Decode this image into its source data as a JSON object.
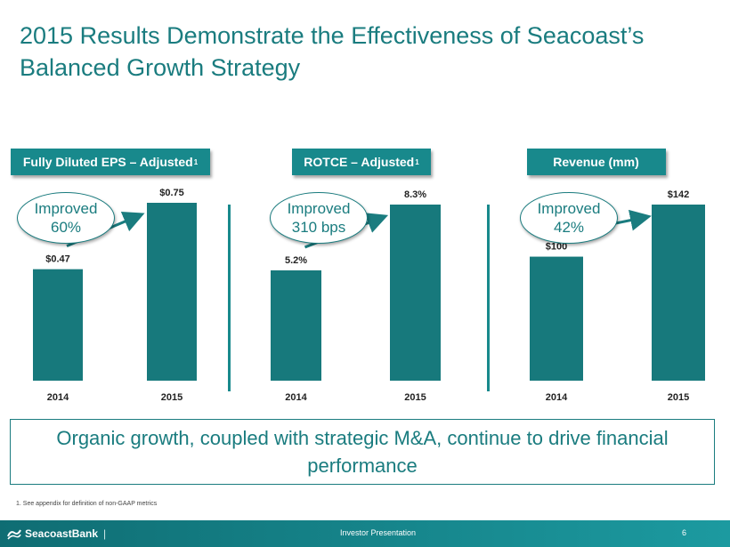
{
  "title": "2015 Results Demonstrate the Effectiveness of Seacoast’s Balanced Growth Strategy",
  "charts": [
    {
      "header": "Fully Diluted EPS – Adjusted",
      "header_sup": "1",
      "callout": {
        "line1": "Improved",
        "line2": "60%"
      }
    },
    {
      "header": "ROTCE – Adjusted",
      "header_sup": "1",
      "callout": {
        "line1": "Improved",
        "line2": "310 bps"
      }
    },
    {
      "header": "Revenue (mm)",
      "header_sup": "",
      "callout": {
        "line1": "Improved",
        "line2": "42%"
      }
    }
  ],
  "chart_data": [
    {
      "type": "bar",
      "title": "Fully Diluted EPS – Adjusted",
      "categories": [
        "2014",
        "2015"
      ],
      "values": [
        0.47,
        0.75
      ],
      "labels": [
        "$0.47",
        "$0.75"
      ],
      "ylim": [
        0,
        0.75
      ],
      "grid": false,
      "annotation": "Improved 60%"
    },
    {
      "type": "bar",
      "title": "ROTCE – Adjusted",
      "categories": [
        "2014",
        "2015"
      ],
      "values": [
        5.2,
        8.3
      ],
      "labels": [
        "5.2%",
        "8.3%"
      ],
      "ylim": [
        0,
        8.3
      ],
      "grid": false,
      "annotation": "Improved 310 bps"
    },
    {
      "type": "bar",
      "title": "Revenue (mm)",
      "categories": [
        "2014",
        "2015"
      ],
      "values": [
        100,
        142
      ],
      "labels": [
        "$100",
        "$142"
      ],
      "ylim": [
        0,
        142
      ],
      "grid": false,
      "annotation": "Improved 42%"
    }
  ],
  "colors": {
    "bar": "#17797c",
    "accent": "#18898c",
    "text": "#1a7c7f"
  },
  "summary": "Organic growth, coupled with strategic M&A, continue to drive financial performance",
  "footnote": "1. See appendix for definition of non-GAAP metrics",
  "footer": {
    "logo_text": "SeacoastBank",
    "center": "Investor Presentation",
    "page": "6"
  }
}
